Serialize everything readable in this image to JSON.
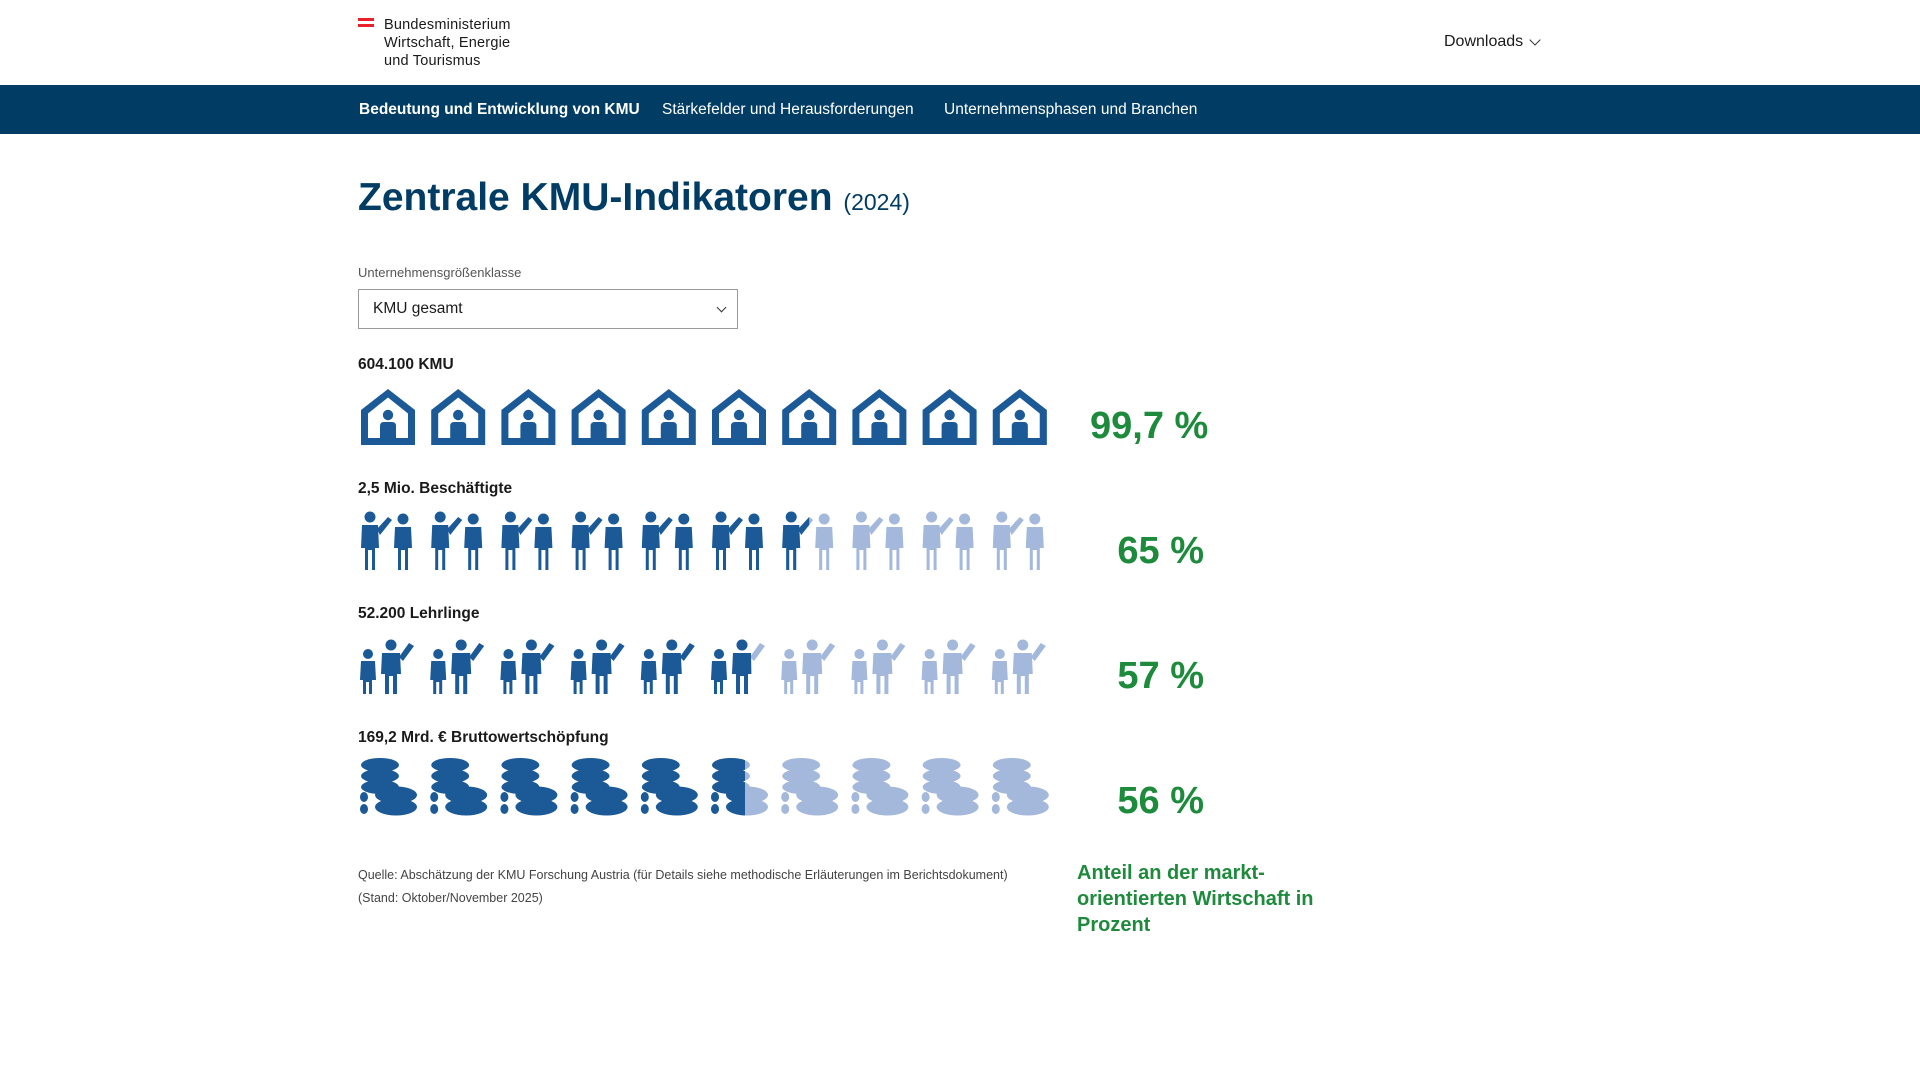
{
  "header": {
    "logo_lines": [
      "Bundesministerium",
      "Wirtschaft, Energie",
      "und Tourismus"
    ],
    "downloads_label": "Downloads",
    "flag_colors": [
      "#e8212b",
      "#ffffff",
      "#e8212b"
    ]
  },
  "nav": {
    "items": [
      {
        "label": "Bedeutung und Entwicklung von KMU",
        "active": true
      },
      {
        "label": "Stärkefelder und Herausforderungen",
        "active": false
      },
      {
        "label": "Unternehmensphasen und Branchen",
        "active": false
      }
    ]
  },
  "main": {
    "title": "Zentrale KMU-Indikatoren",
    "title_year": "(2024)"
  },
  "filter": {
    "label": "Unternehmensgrößenklasse",
    "selected": "KMU gesamt"
  },
  "colors": {
    "primary": "#003c64",
    "icon_dark": "#1c5a97",
    "icon_light": "#a3b8da",
    "accent_green": "#1e8a3c"
  },
  "indicators": [
    {
      "label": "604.100 KMU",
      "percent_label": "99,7 %",
      "share": 99.7,
      "icon": "house-person-icon"
    },
    {
      "label": "2,5 Mio. Beschäftigte",
      "percent_label": "65 %",
      "share": 65,
      "icon": "worker-person-icon"
    },
    {
      "label": "52.200 Lehrlinge",
      "percent_label": "57 %",
      "share": 57,
      "icon": "apprentice-person-icon"
    },
    {
      "label": "169,2 Mrd. € Bruttowertschöpfung",
      "percent_label": "56 %",
      "share": 56,
      "icon": "coin-stack-icon"
    }
  ],
  "source": {
    "line1": "Quelle: Abschätzung der KMU Forschung Austria (für Details siehe methodische Erläuterungen im Berichtsdokument)",
    "line2": "(Stand: Oktober/November 2025)"
  },
  "legend": {
    "text": "Anteil an der markt-orientierten Wirtschaft in Prozent"
  }
}
